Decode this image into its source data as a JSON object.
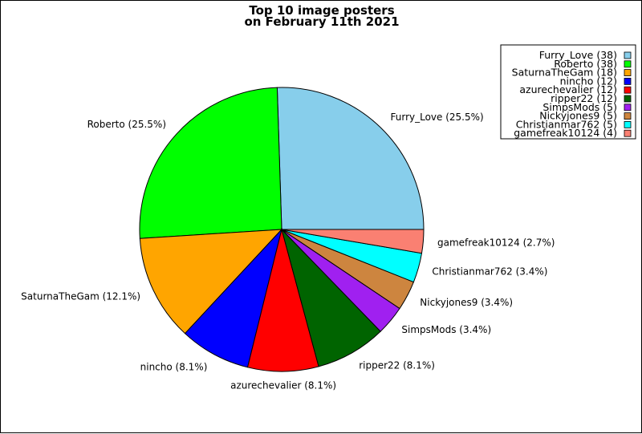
{
  "chart_data": {
    "type": "pie",
    "title": [
      "Top 10 image posters",
      "on February 11th 2021"
    ],
    "legend_position": "top-right",
    "slices": [
      {
        "name": "Furry_Love",
        "value": 38,
        "percent_label": "Furry_Love (25.5%)",
        "legend_label": "Furry_Love (38)",
        "color": "#87CEEB"
      },
      {
        "name": "Roberto",
        "value": 38,
        "percent_label": "Roberto (25.5%)",
        "legend_label": "Roberto (38)",
        "color": "#00FF00"
      },
      {
        "name": "SaturnaTheGam",
        "value": 18,
        "percent_label": "SaturnaTheGam (12.1%)",
        "legend_label": "SaturnaTheGam (18)",
        "color": "#FFA500"
      },
      {
        "name": "nincho",
        "value": 12,
        "percent_label": "nincho (8.1%)",
        "legend_label": "nincho (12)",
        "color": "#0000FF"
      },
      {
        "name": "azurechevalier",
        "value": 12,
        "percent_label": "azurechevalier (8.1%)",
        "legend_label": "azurechevalier (12)",
        "color": "#FF0000"
      },
      {
        "name": "ripper22",
        "value": 12,
        "percent_label": "ripper22 (8.1%)",
        "legend_label": "ripper22 (12)",
        "color": "#006400"
      },
      {
        "name": "SimpsMods",
        "value": 5,
        "percent_label": "SimpsMods (3.4%)",
        "legend_label": "SimpsMods (5)",
        "color": "#A020F0"
      },
      {
        "name": "Nickyjones9",
        "value": 5,
        "percent_label": "Nickyjones9 (3.4%)",
        "legend_label": "Nickyjones9 (5)",
        "color": "#CD853F"
      },
      {
        "name": "Christianmar762",
        "value": 5,
        "percent_label": "Christianmar762 (3.4%)",
        "legend_label": "Christianmar762 (5)",
        "color": "#00FFFF"
      },
      {
        "name": "gamefreak10124",
        "value": 4,
        "percent_label": "gamefreak10124 (2.7%)",
        "legend_label": "gamefreak10124 (4)",
        "color": "#FA8072"
      }
    ]
  }
}
